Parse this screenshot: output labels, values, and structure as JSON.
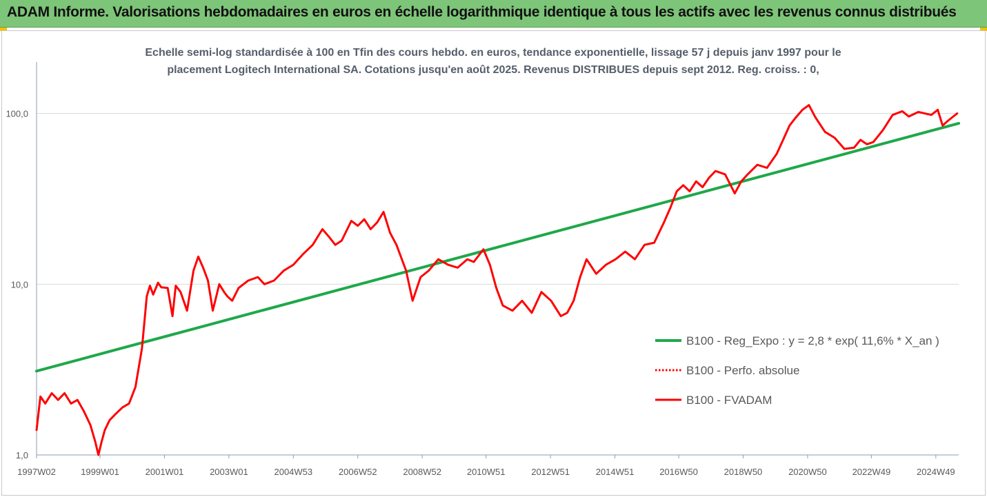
{
  "header": {
    "title": "ADAM Informe. Valorisations hebdomadaires en euros en échelle logarithmique identique à tous les actifs avec les revenus connus distribués"
  },
  "chart_data": {
    "type": "line",
    "title_lines": [
      "Echelle semi-log standardisée à 100 en Tfin des cours hebdo. en euros, tendance exponentielle, lissage 57 j depuis janv 1997 pour le",
      "placement Logitech International SA. Cotations jusqu'en août 2025. Revenus DISTRIBUES depuis sept 2012. Reg. croiss. : 0,"
    ],
    "y_scale": "log",
    "ylim": [
      1,
      200
    ],
    "y_ticks": [
      {
        "value": 1,
        "label": "1,0"
      },
      {
        "value": 10,
        "label": "10,0"
      },
      {
        "value": 100,
        "label": "100,0"
      }
    ],
    "xlim": [
      1997.03,
      2025.65
    ],
    "x_ticks": [
      {
        "x": 1997.03,
        "label": "1997W02"
      },
      {
        "x": 1999.0,
        "label": "1999W01"
      },
      {
        "x": 2001.0,
        "label": "2001W01"
      },
      {
        "x": 2003.0,
        "label": "2003W01"
      },
      {
        "x": 2005.0,
        "label": "2004W53"
      },
      {
        "x": 2007.0,
        "label": "2006W52"
      },
      {
        "x": 2009.0,
        "label": "2008W52"
      },
      {
        "x": 2010.98,
        "label": "2010W51"
      },
      {
        "x": 2012.98,
        "label": "2012W51"
      },
      {
        "x": 2014.98,
        "label": "2014W51"
      },
      {
        "x": 2016.96,
        "label": "2016W50"
      },
      {
        "x": 2018.96,
        "label": "2018W50"
      },
      {
        "x": 2020.96,
        "label": "2020W50"
      },
      {
        "x": 2022.94,
        "label": "2022W49"
      },
      {
        "x": 2024.94,
        "label": "2024W49"
      }
    ],
    "grid": "horizontal",
    "legend_position": "bottom-right",
    "series": [
      {
        "name": "B100 - Reg_Expo : y = 2,8 * exp( 11,6% *  X_an )",
        "color": "#1fa84a",
        "style": "solid",
        "x": [
          1997.03,
          2025.65
        ],
        "y": [
          3.1,
          87.5
        ]
      },
      {
        "name": "B100 - Perfo. absolue",
        "color": "#ff0000",
        "style": "dotted",
        "x": [],
        "y": []
      },
      {
        "name": "B100 - FVADAM",
        "color": "#ff0000",
        "style": "solid",
        "x": [
          1997.03,
          1997.15,
          1997.3,
          1997.5,
          1997.7,
          1997.9,
          1998.1,
          1998.3,
          1998.5,
          1998.7,
          1998.85,
          1998.95,
          1999.05,
          1999.15,
          1999.3,
          1999.5,
          1999.7,
          1999.9,
          2000.1,
          2000.3,
          2000.45,
          2000.55,
          2000.65,
          2000.8,
          2000.9,
          2001.1,
          2001.25,
          2001.35,
          2001.5,
          2001.7,
          2001.9,
          2002.05,
          2002.2,
          2002.35,
          2002.5,
          2002.7,
          2002.85,
          2002.95,
          2003.1,
          2003.3,
          2003.6,
          2003.9,
          2004.1,
          2004.4,
          2004.7,
          2005.0,
          2005.3,
          2005.6,
          2005.9,
          2006.1,
          2006.3,
          2006.5,
          2006.8,
          2007.0,
          2007.2,
          2007.4,
          2007.6,
          2007.8,
          2008.0,
          2008.2,
          2008.5,
          2008.7,
          2008.95,
          2009.2,
          2009.5,
          2009.8,
          2010.1,
          2010.4,
          2010.6,
          2010.9,
          2011.1,
          2011.3,
          2011.5,
          2011.8,
          2012.1,
          2012.4,
          2012.7,
          2013.0,
          2013.3,
          2013.5,
          2013.7,
          2013.9,
          2014.1,
          2014.4,
          2014.7,
          2015.0,
          2015.3,
          2015.6,
          2015.9,
          2016.2,
          2016.5,
          2016.7,
          2016.9,
          2017.1,
          2017.3,
          2017.5,
          2017.7,
          2017.9,
          2018.1,
          2018.4,
          2018.7,
          2018.9,
          2019.1,
          2019.4,
          2019.7,
          2020.0,
          2020.2,
          2020.4,
          2020.6,
          2020.8,
          2021.0,
          2021.2,
          2021.5,
          2021.8,
          2022.1,
          2022.4,
          2022.6,
          2022.8,
          2023.0,
          2023.3,
          2023.6,
          2023.9,
          2024.1,
          2024.4,
          2024.6,
          2024.8,
          2025.0,
          2025.15,
          2025.3,
          2025.45,
          2025.6
        ],
        "y": [
          1.4,
          2.2,
          2.0,
          2.3,
          2.1,
          2.3,
          2.0,
          2.1,
          1.8,
          1.5,
          1.2,
          1.0,
          1.2,
          1.4,
          1.6,
          1.75,
          1.9,
          2.0,
          2.5,
          4.2,
          8.5,
          9.8,
          8.7,
          10.2,
          9.6,
          9.5,
          6.5,
          9.8,
          9.0,
          7.0,
          12.0,
          14.5,
          12.5,
          10.5,
          7.0,
          10.0,
          9.0,
          8.5,
          8.0,
          9.5,
          10.5,
          11.0,
          10.0,
          10.5,
          12.0,
          13.0,
          15.0,
          17.0,
          21.0,
          19.0,
          17.0,
          18.0,
          23.5,
          22.0,
          24.0,
          21.0,
          23.0,
          26.5,
          20.0,
          17.0,
          12.0,
          8.0,
          11.0,
          12.0,
          14.0,
          13.0,
          12.5,
          14.0,
          13.5,
          16.0,
          13.0,
          9.5,
          7.5,
          7.0,
          8.0,
          6.8,
          9.0,
          8.0,
          6.5,
          6.8,
          8.0,
          11.0,
          14.0,
          11.5,
          13.0,
          14.0,
          15.5,
          14.0,
          17.0,
          17.5,
          23.0,
          28.0,
          35.0,
          38.0,
          35.0,
          40.0,
          37.0,
          42.0,
          46.0,
          44.0,
          34.0,
          40.0,
          44.0,
          50.0,
          48.0,
          58.0,
          70.0,
          85.0,
          95.0,
          105.0,
          112.0,
          95.0,
          78.0,
          72.0,
          62.0,
          63.0,
          70.0,
          66.0,
          68.0,
          80.0,
          98.0,
          103.0,
          96.0,
          102.0,
          100.0,
          98.0,
          105.0,
          85.0,
          90.0,
          95.0,
          100.0
        ]
      }
    ]
  }
}
